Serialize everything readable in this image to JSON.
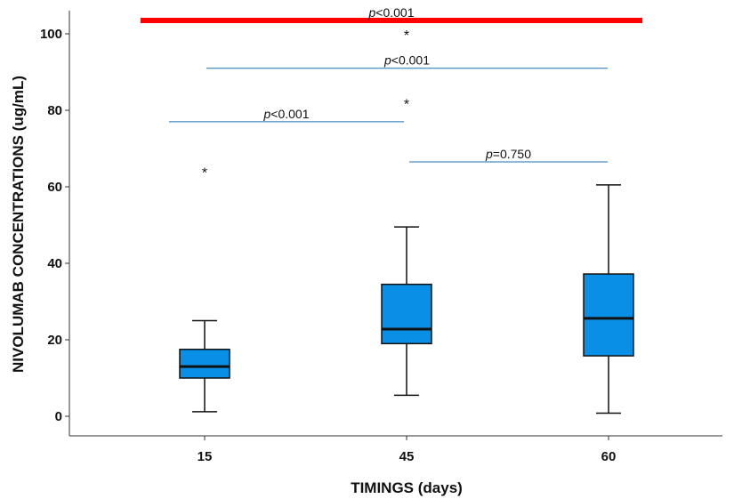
{
  "chart_data": {
    "type": "boxplot",
    "xlabel": "TIMINGS (days)",
    "ylabel": "NIVOLUMAB CONCENTRATIONS (ug/mL)",
    "ylim": [
      -5,
      106
    ],
    "yticks": [
      "0",
      "20",
      "40",
      "60",
      "80",
      "100"
    ],
    "categories": [
      "15",
      "45",
      "60"
    ],
    "box_color": "#0a8fe6",
    "boxes": [
      {
        "category": "15",
        "whisker_low": 1.2,
        "q1": 10,
        "median": 13,
        "q3": 17.5,
        "whisker_high": 25,
        "outliers": [
          64.5
        ]
      },
      {
        "category": "45",
        "whisker_low": 5.5,
        "q1": 19,
        "median": 22.8,
        "q3": 34.5,
        "whisker_high": 49.5,
        "outliers": [
          82.5,
          100.5
        ]
      },
      {
        "category": "60",
        "whisker_low": 0.8,
        "q1": 15.8,
        "median": 25.6,
        "q3": 37.2,
        "whisker_high": 60.5,
        "outliers": []
      }
    ],
    "comparisons": [
      {
        "from": "15",
        "to": "60",
        "y": 103.5,
        "p": "p",
        "value": "<0.001",
        "color": "#ff0000",
        "thick": true
      },
      {
        "from": "15",
        "to": "60",
        "y": 91,
        "p": "p",
        "value": "<0.001",
        "color": "#1f6fb0",
        "thick": false
      },
      {
        "from": "15",
        "to": "45",
        "y": 77,
        "p": "p",
        "value": "<0.001",
        "color": "#1f6fb0",
        "thick": false
      },
      {
        "from": "45",
        "to": "60",
        "y": 66.5,
        "p": "p",
        "value": "=0.750",
        "color": "#1f6fb0",
        "thick": false
      }
    ]
  }
}
